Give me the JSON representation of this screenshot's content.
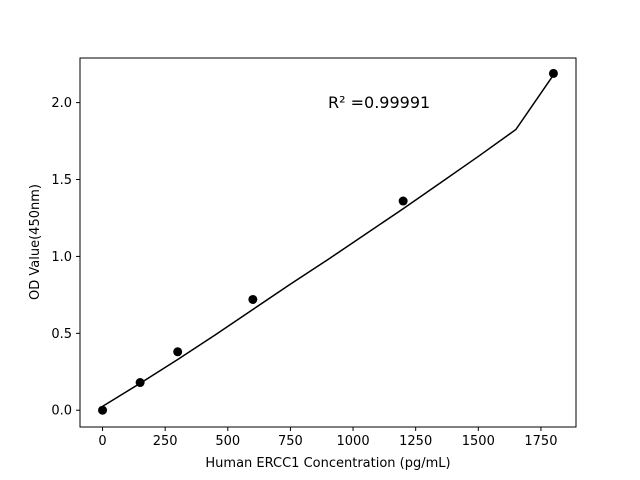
{
  "chart_data": {
    "type": "scatter",
    "xlabel": "Human ERCC1 Concentration (pg/mL)",
    "ylabel": "OD Value(450nm)",
    "xlim": [
      -90,
      1890
    ],
    "ylim": [
      -0.109,
      2.29
    ],
    "x_ticks": [
      0,
      250,
      500,
      750,
      1000,
      1250,
      1500,
      1750
    ],
    "x_tick_labels": [
      "0",
      "250",
      "500",
      "750",
      "1000",
      "1250",
      "1500",
      "1750"
    ],
    "y_ticks": [
      0.0,
      0.5,
      1.0,
      1.5,
      2.0
    ],
    "y_tick_labels": [
      "0.0",
      "0.5",
      "1.0",
      "1.5",
      "2.0"
    ],
    "grid": false,
    "annotation": "R² =0.99991",
    "series": [
      {
        "kind": "points",
        "x": [
          0,
          150,
          300,
          600,
          1200,
          1800
        ],
        "y": [
          0.0,
          0.18,
          0.38,
          0.72,
          1.36,
          2.19
        ],
        "color": "#000000"
      },
      {
        "kind": "fit",
        "x": [
          0,
          150,
          300,
          450,
          600,
          750,
          900,
          1050,
          1200,
          1350,
          1500,
          1650,
          1800
        ],
        "y": [
          0.025,
          0.175,
          0.33,
          0.49,
          0.655,
          0.82,
          0.98,
          1.145,
          1.31,
          1.48,
          1.65,
          1.825,
          2.18
        ],
        "color": "#000000"
      }
    ]
  }
}
